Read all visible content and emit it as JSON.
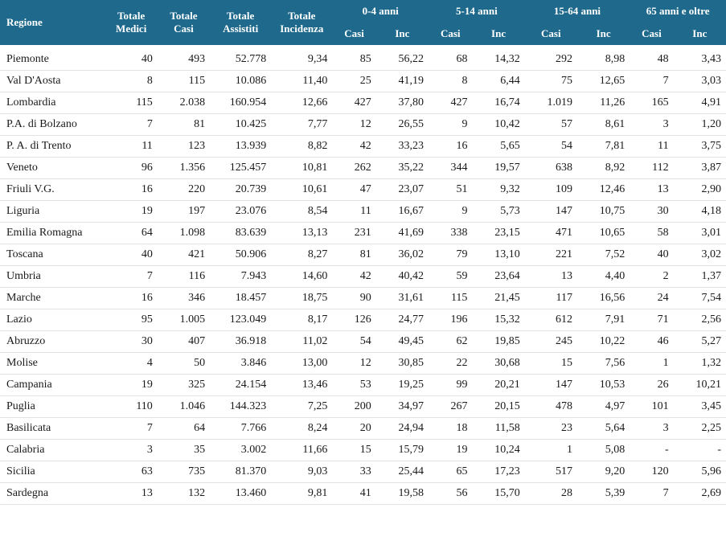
{
  "table": {
    "header_bg": "#1f6a8c",
    "header_fg": "#ffffff",
    "row_border": "#e2e2e2",
    "font": "Georgia",
    "headers": {
      "regione": "Regione",
      "tot_medici": "Totale Medici",
      "tot_casi": "Totale Casi",
      "tot_assistiti": "Totale Assistiti",
      "tot_incidenza": "Totale Incidenza",
      "g0_4": "0-4 anni",
      "g5_14": "5-14 anni",
      "g15_64": "15-64 anni",
      "g65": "65 anni e oltre",
      "casi": "Casi",
      "inc": "Inc"
    },
    "rows": [
      {
        "regione": "Piemonte",
        "tot_medici": "40",
        "tot_casi": "493",
        "tot_assistiti": "52.778",
        "tot_incidenza": "9,34",
        "c0": "85",
        "i0": "56,22",
        "c1": "68",
        "i1": "14,32",
        "c2": "292",
        "i2": "8,98",
        "c3": "48",
        "i3": "3,43"
      },
      {
        "regione": "Val D'Aosta",
        "tot_medici": "8",
        "tot_casi": "115",
        "tot_assistiti": "10.086",
        "tot_incidenza": "11,40",
        "c0": "25",
        "i0": "41,19",
        "c1": "8",
        "i1": "6,44",
        "c2": "75",
        "i2": "12,65",
        "c3": "7",
        "i3": "3,03"
      },
      {
        "regione": "Lombardia",
        "tot_medici": "115",
        "tot_casi": "2.038",
        "tot_assistiti": "160.954",
        "tot_incidenza": "12,66",
        "c0": "427",
        "i0": "37,80",
        "c1": "427",
        "i1": "16,74",
        "c2": "1.019",
        "i2": "11,26",
        "c3": "165",
        "i3": "4,91"
      },
      {
        "regione": "P.A. di Bolzano",
        "tot_medici": "7",
        "tot_casi": "81",
        "tot_assistiti": "10.425",
        "tot_incidenza": "7,77",
        "c0": "12",
        "i0": "26,55",
        "c1": "9",
        "i1": "10,42",
        "c2": "57",
        "i2": "8,61",
        "c3": "3",
        "i3": "1,20"
      },
      {
        "regione": "P. A. di Trento",
        "tot_medici": "11",
        "tot_casi": "123",
        "tot_assistiti": "13.939",
        "tot_incidenza": "8,82",
        "c0": "42",
        "i0": "33,23",
        "c1": "16",
        "i1": "5,65",
        "c2": "54",
        "i2": "7,81",
        "c3": "11",
        "i3": "3,75"
      },
      {
        "regione": "Veneto",
        "tot_medici": "96",
        "tot_casi": "1.356",
        "tot_assistiti": "125.457",
        "tot_incidenza": "10,81",
        "c0": "262",
        "i0": "35,22",
        "c1": "344",
        "i1": "19,57",
        "c2": "638",
        "i2": "8,92",
        "c3": "112",
        "i3": "3,87"
      },
      {
        "regione": "Friuli V.G.",
        "tot_medici": "16",
        "tot_casi": "220",
        "tot_assistiti": "20.739",
        "tot_incidenza": "10,61",
        "c0": "47",
        "i0": "23,07",
        "c1": "51",
        "i1": "9,32",
        "c2": "109",
        "i2": "12,46",
        "c3": "13",
        "i3": "2,90"
      },
      {
        "regione": "Liguria",
        "tot_medici": "19",
        "tot_casi": "197",
        "tot_assistiti": "23.076",
        "tot_incidenza": "8,54",
        "c0": "11",
        "i0": "16,67",
        "c1": "9",
        "i1": "5,73",
        "c2": "147",
        "i2": "10,75",
        "c3": "30",
        "i3": "4,18"
      },
      {
        "regione": "Emilia Romagna",
        "tot_medici": "64",
        "tot_casi": "1.098",
        "tot_assistiti": "83.639",
        "tot_incidenza": "13,13",
        "c0": "231",
        "i0": "41,69",
        "c1": "338",
        "i1": "23,15",
        "c2": "471",
        "i2": "10,65",
        "c3": "58",
        "i3": "3,01"
      },
      {
        "regione": "Toscana",
        "tot_medici": "40",
        "tot_casi": "421",
        "tot_assistiti": "50.906",
        "tot_incidenza": "8,27",
        "c0": "81",
        "i0": "36,02",
        "c1": "79",
        "i1": "13,10",
        "c2": "221",
        "i2": "7,52",
        "c3": "40",
        "i3": "3,02"
      },
      {
        "regione": "Umbria",
        "tot_medici": "7",
        "tot_casi": "116",
        "tot_assistiti": "7.943",
        "tot_incidenza": "14,60",
        "c0": "42",
        "i0": "40,42",
        "c1": "59",
        "i1": "23,64",
        "c2": "13",
        "i2": "4,40",
        "c3": "2",
        "i3": "1,37"
      },
      {
        "regione": "Marche",
        "tot_medici": "16",
        "tot_casi": "346",
        "tot_assistiti": "18.457",
        "tot_incidenza": "18,75",
        "c0": "90",
        "i0": "31,61",
        "c1": "115",
        "i1": "21,45",
        "c2": "117",
        "i2": "16,56",
        "c3": "24",
        "i3": "7,54"
      },
      {
        "regione": "Lazio",
        "tot_medici": "95",
        "tot_casi": "1.005",
        "tot_assistiti": "123.049",
        "tot_incidenza": "8,17",
        "c0": "126",
        "i0": "24,77",
        "c1": "196",
        "i1": "15,32",
        "c2": "612",
        "i2": "7,91",
        "c3": "71",
        "i3": "2,56"
      },
      {
        "regione": "Abruzzo",
        "tot_medici": "30",
        "tot_casi": "407",
        "tot_assistiti": "36.918",
        "tot_incidenza": "11,02",
        "c0": "54",
        "i0": "49,45",
        "c1": "62",
        "i1": "19,85",
        "c2": "245",
        "i2": "10,22",
        "c3": "46",
        "i3": "5,27"
      },
      {
        "regione": "Molise",
        "tot_medici": "4",
        "tot_casi": "50",
        "tot_assistiti": "3.846",
        "tot_incidenza": "13,00",
        "c0": "12",
        "i0": "30,85",
        "c1": "22",
        "i1": "30,68",
        "c2": "15",
        "i2": "7,56",
        "c3": "1",
        "i3": "1,32"
      },
      {
        "regione": "Campania",
        "tot_medici": "19",
        "tot_casi": "325",
        "tot_assistiti": "24.154",
        "tot_incidenza": "13,46",
        "c0": "53",
        "i0": "19,25",
        "c1": "99",
        "i1": "20,21",
        "c2": "147",
        "i2": "10,53",
        "c3": "26",
        "i3": "10,21"
      },
      {
        "regione": "Puglia",
        "tot_medici": "110",
        "tot_casi": "1.046",
        "tot_assistiti": "144.323",
        "tot_incidenza": "7,25",
        "c0": "200",
        "i0": "34,97",
        "c1": "267",
        "i1": "20,15",
        "c2": "478",
        "i2": "4,97",
        "c3": "101",
        "i3": "3,45"
      },
      {
        "regione": "Basilicata",
        "tot_medici": "7",
        "tot_casi": "64",
        "tot_assistiti": "7.766",
        "tot_incidenza": "8,24",
        "c0": "20",
        "i0": "24,94",
        "c1": "18",
        "i1": "11,58",
        "c2": "23",
        "i2": "5,64",
        "c3": "3",
        "i3": "2,25"
      },
      {
        "regione": "Calabria",
        "tot_medici": "3",
        "tot_casi": "35",
        "tot_assistiti": "3.002",
        "tot_incidenza": "11,66",
        "c0": "15",
        "i0": "15,79",
        "c1": "19",
        "i1": "10,24",
        "c2": "1",
        "i2": "5,08",
        "c3": "-",
        "i3": "-"
      },
      {
        "regione": "Sicilia",
        "tot_medici": "63",
        "tot_casi": "735",
        "tot_assistiti": "81.370",
        "tot_incidenza": "9,03",
        "c0": "33",
        "i0": "25,44",
        "c1": "65",
        "i1": "17,23",
        "c2": "517",
        "i2": "9,20",
        "c3": "120",
        "i3": "5,96"
      },
      {
        "regione": "Sardegna",
        "tot_medici": "13",
        "tot_casi": "132",
        "tot_assistiti": "13.460",
        "tot_incidenza": "9,81",
        "c0": "41",
        "i0": "19,58",
        "c1": "56",
        "i1": "15,70",
        "c2": "28",
        "i2": "5,39",
        "c3": "7",
        "i3": "2,69"
      }
    ]
  }
}
